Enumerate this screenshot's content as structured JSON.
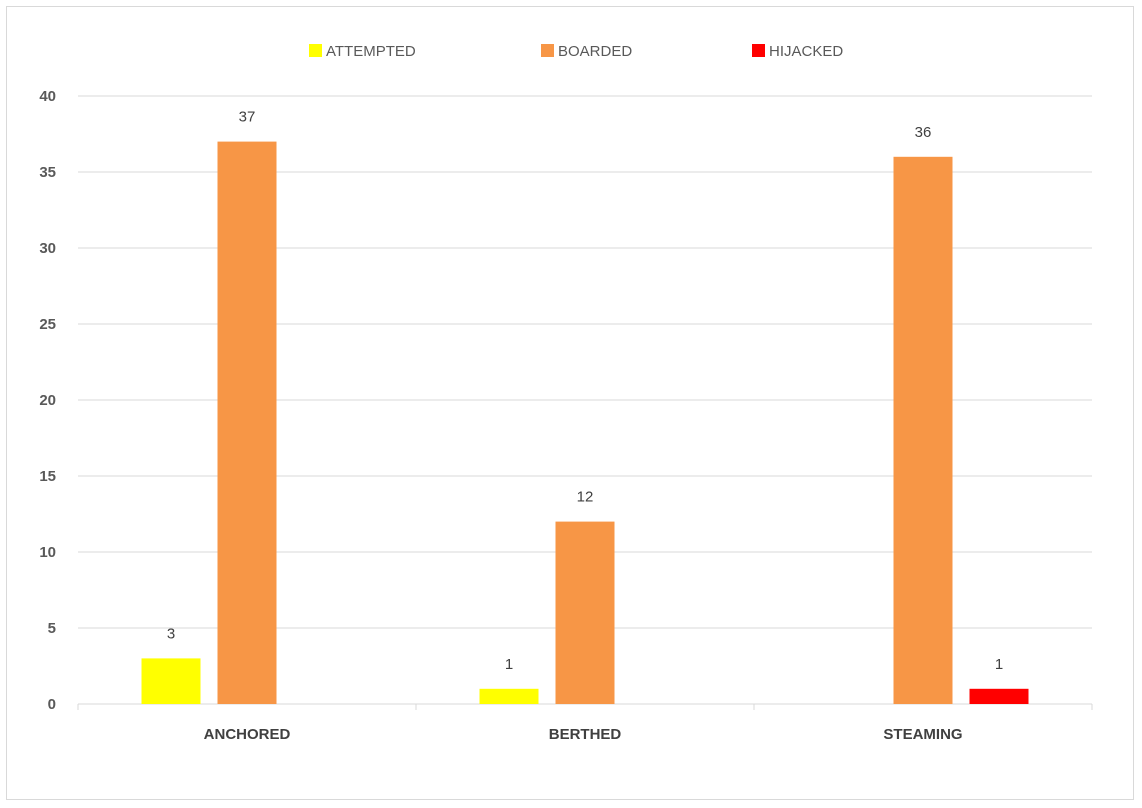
{
  "chart_data": {
    "type": "bar",
    "categories": [
      "ANCHORED",
      "BERTHED",
      "STEAMING"
    ],
    "series": [
      {
        "name": "ATTEMPTED",
        "color": "#FFFF00",
        "values": [
          3,
          1,
          0
        ]
      },
      {
        "name": "BOARDED",
        "color": "#F79646",
        "values": [
          37,
          12,
          36
        ]
      },
      {
        "name": "HIJACKED",
        "color": "#FF0000",
        "values": [
          0,
          0,
          1
        ]
      }
    ],
    "ylim": [
      0,
      40
    ],
    "yticks": [
      0,
      5,
      10,
      15,
      20,
      25,
      30,
      35,
      40
    ],
    "grid": true,
    "legend_position": "top-center",
    "gridline_color": "#d9d9d9"
  }
}
